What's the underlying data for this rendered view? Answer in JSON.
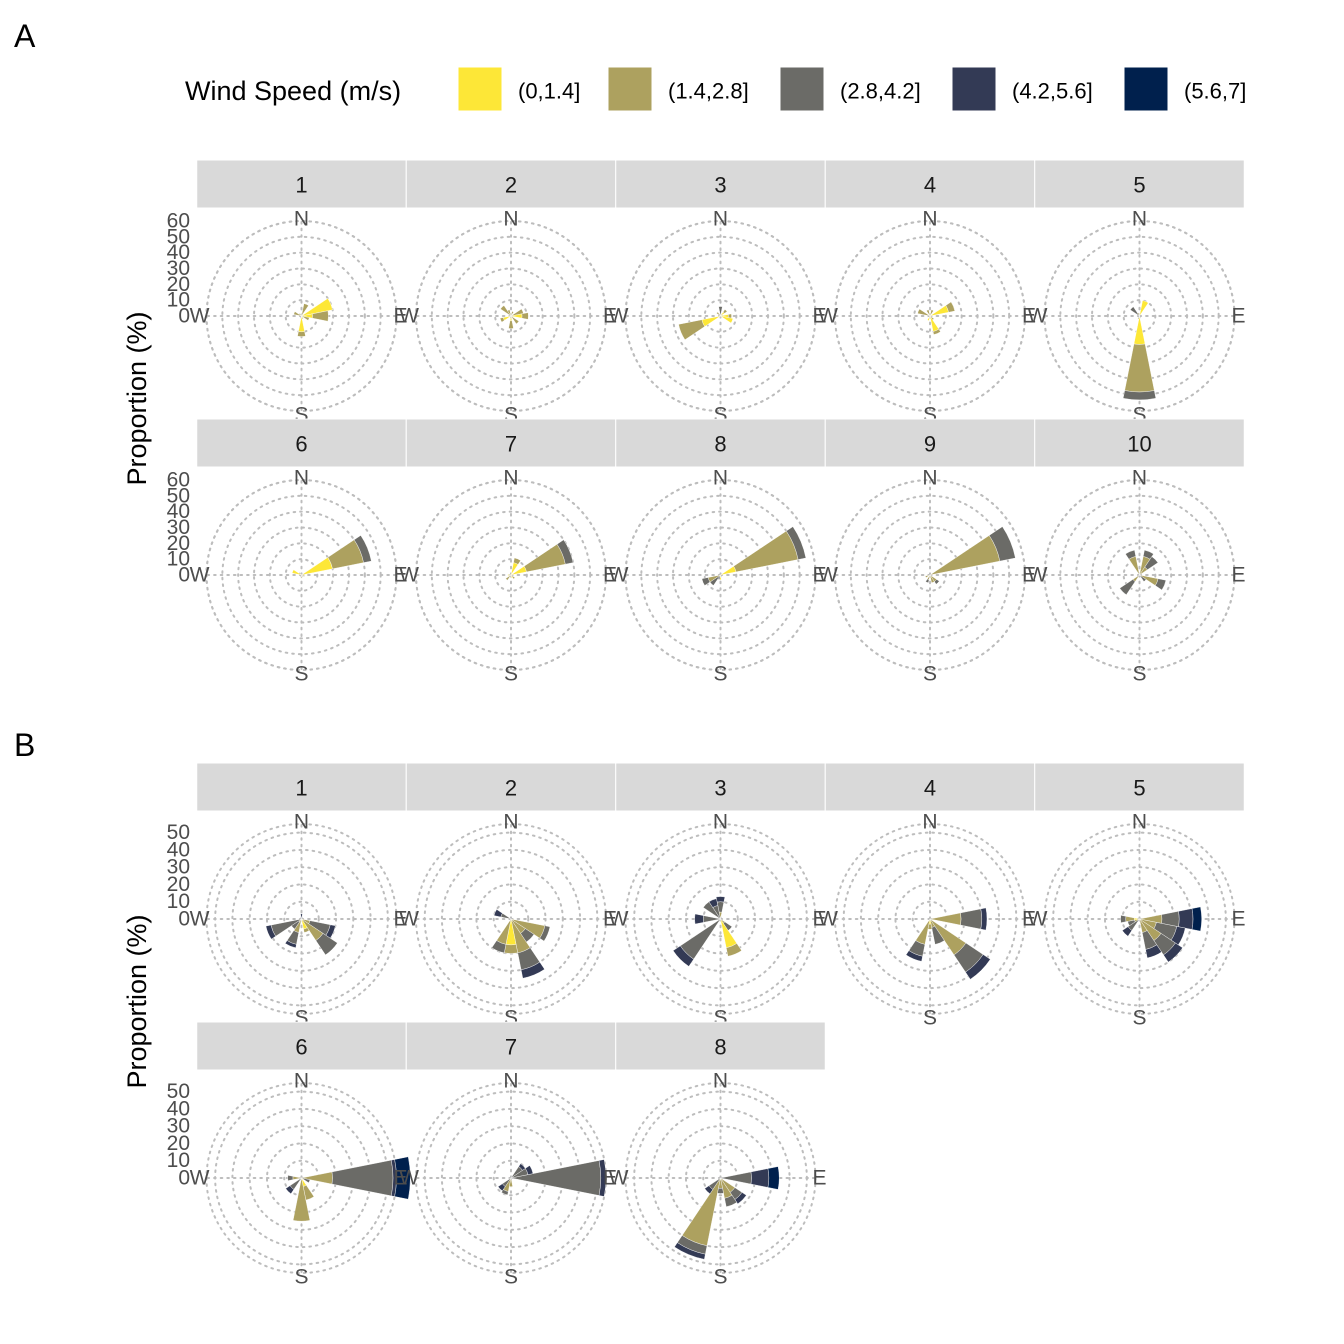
{
  "figure": {
    "panel_a_label": "A",
    "panel_b_label": "B",
    "y_axis_label": "Proportion (%)"
  },
  "legend": {
    "title": "Wind Speed (m/s)",
    "items": [
      {
        "label": "(0,1.4]",
        "color": "#FDE737"
      },
      {
        "label": "(1.4,2.8]",
        "color": "#ADA15F"
      },
      {
        "label": "(2.8,4.2]",
        "color": "#6B6B67"
      },
      {
        "label": "(4.2,5.6]",
        "color": "#333A55"
      },
      {
        "label": "(5.6,7]",
        "color": "#00204D"
      }
    ]
  },
  "compass": {
    "north": "N",
    "south": "S",
    "east": "E",
    "west": "W"
  },
  "chart_data": [
    {
      "panel": "A",
      "type": "wind_rose_facets",
      "ylabel": "Proportion (%)",
      "radial_ticks": [
        0,
        10,
        20,
        30,
        40,
        50,
        60
      ],
      "rmax": 60,
      "directions_deg": [
        0,
        22.5,
        45,
        67.5,
        90,
        112.5,
        135,
        157.5,
        180,
        202.5,
        225,
        247.5,
        270,
        292.5,
        315,
        337.5
      ],
      "facets": [
        {
          "label": "1",
          "bins": [
            {
              "dir": 22.5,
              "values": [
                0,
                8
              ]
            },
            {
              "dir": 67.5,
              "values": [
                20,
                0
              ]
            },
            {
              "dir": 90,
              "values": [
                7,
                10
              ]
            },
            {
              "dir": 112.5,
              "values": [
                0,
                5
              ]
            },
            {
              "dir": 157.5,
              "values": [
                0,
                2
              ]
            },
            {
              "dir": 180,
              "values": [
                10,
                3
              ]
            },
            {
              "dir": 292.5,
              "values": [
                0,
                5
              ]
            },
            {
              "dir": 315,
              "values": [
                0,
                2
              ]
            }
          ]
        },
        {
          "label": "2",
          "bins": [
            {
              "dir": 22.5,
              "values": [
                0,
                3
              ]
            },
            {
              "dir": 67.5,
              "values": [
                0,
                8
              ]
            },
            {
              "dir": 90,
              "values": [
                7,
                4
              ]
            },
            {
              "dir": 135,
              "values": [
                0,
                6
              ]
            },
            {
              "dir": 180,
              "values": [
                3,
                5
              ]
            },
            {
              "dir": 247.5,
              "values": [
                5,
                2
              ]
            },
            {
              "dir": 315,
              "values": [
                0,
                8
              ]
            },
            {
              "dir": 337.5,
              "values": [
                0,
                4
              ]
            }
          ]
        },
        {
          "label": "3",
          "bins": [
            {
              "dir": 0,
              "values": [
                0,
                0,
                6
              ]
            },
            {
              "dir": 45,
              "values": [
                3,
                2
              ]
            },
            {
              "dir": 90,
              "values": [
                5,
                2
              ]
            },
            {
              "dir": 112.5,
              "values": [
                8,
                0
              ]
            },
            {
              "dir": 247.5,
              "values": [
                12,
                15
              ]
            },
            {
              "dir": 315,
              "values": [
                0,
                3
              ]
            }
          ]
        },
        {
          "label": "4",
          "bins": [
            {
              "dir": 22.5,
              "values": [
                0,
                4
              ]
            },
            {
              "dir": 67.5,
              "values": [
                12,
                4
              ]
            },
            {
              "dir": 135,
              "values": [
                0,
                3
              ]
            },
            {
              "dir": 157.5,
              "values": [
                10,
                2
              ]
            },
            {
              "dir": 202.5,
              "values": [
                3,
                0
              ]
            },
            {
              "dir": 292.5,
              "values": [
                0,
                8
              ]
            },
            {
              "dir": 337.5,
              "values": [
                0,
                4
              ]
            }
          ]
        },
        {
          "label": "5",
          "bins": [
            {
              "dir": 22.5,
              "values": [
                10,
                0
              ]
            },
            {
              "dir": 180,
              "values": [
                18,
                30,
                5
              ]
            },
            {
              "dir": 202.5,
              "values": [
                0,
                2
              ]
            },
            {
              "dir": 315,
              "values": [
                0,
                0,
                7
              ]
            },
            {
              "dir": 337.5,
              "values": [
                0,
                2
              ]
            }
          ]
        },
        {
          "label": "6",
          "bins": [
            {
              "dir": 67.5,
              "values": [
                20,
                20,
                5
              ]
            },
            {
              "dir": 90,
              "values": [
                0,
                2
              ]
            },
            {
              "dir": 112.5,
              "values": [
                0,
                2
              ]
            },
            {
              "dir": 180,
              "values": [
                0,
                2
              ]
            },
            {
              "dir": 292.5,
              "values": [
                6,
                0
              ]
            },
            {
              "dir": 315,
              "values": [
                0,
                2
              ]
            }
          ]
        },
        {
          "label": "7",
          "bins": [
            {
              "dir": 22.5,
              "values": [
                8,
                3
              ]
            },
            {
              "dir": 67.5,
              "values": [
                10,
                25,
                5
              ]
            },
            {
              "dir": 135,
              "values": [
                0,
                3
              ]
            },
            {
              "dir": 157.5,
              "values": [
                2,
                0
              ]
            },
            {
              "dir": 225,
              "values": [
                0,
                4
              ]
            },
            {
              "dir": 270,
              "values": [
                2,
                0
              ]
            }
          ]
        },
        {
          "label": "8",
          "bins": [
            {
              "dir": 67.5,
              "values": [
                10,
                40,
                5
              ]
            },
            {
              "dir": 180,
              "values": [
                3,
                0
              ]
            },
            {
              "dir": 202.5,
              "values": [
                0,
                0,
                3
              ]
            },
            {
              "dir": 225,
              "values": [
                0,
                0,
                8
              ]
            },
            {
              "dir": 247.5,
              "values": [
                0,
                8,
                4
              ]
            }
          ]
        },
        {
          "label": "9",
          "bins": [
            {
              "dir": 67.5,
              "values": [
                0,
                45,
                10
              ]
            },
            {
              "dir": 135,
              "values": [
                0,
                5,
                2
              ]
            },
            {
              "dir": 157.5,
              "values": [
                0,
                5
              ]
            },
            {
              "dir": 202.5,
              "values": [
                0,
                3,
                2
              ]
            },
            {
              "dir": 247.5,
              "values": [
                0,
                3
              ]
            }
          ]
        },
        {
          "label": "10",
          "bins": [
            {
              "dir": 22.5,
              "values": [
                0,
                12,
                4
              ]
            },
            {
              "dir": 45,
              "values": [
                0,
                6,
                8
              ]
            },
            {
              "dir": 112.5,
              "values": [
                0,
                12,
                5
              ]
            },
            {
              "dir": 135,
              "values": [
                0,
                0,
                5
              ]
            },
            {
              "dir": 225,
              "values": [
                0,
                5,
                10
              ]
            },
            {
              "dir": 337.5,
              "values": [
                0,
                12,
                4
              ]
            }
          ]
        }
      ]
    },
    {
      "panel": "B",
      "type": "wind_rose_facets",
      "ylabel": "Proportion (%)",
      "radial_ticks": [
        0,
        10,
        20,
        30,
        40,
        50
      ],
      "rmax": 55,
      "directions_deg": [
        0,
        22.5,
        45,
        67.5,
        90,
        112.5,
        135,
        157.5,
        180,
        202.5,
        225,
        247.5,
        270,
        292.5,
        315,
        337.5
      ],
      "facets": [
        {
          "label": "1",
          "bins": [
            {
              "dir": 0,
              "values": [
                0,
                0,
                0,
                3
              ]
            },
            {
              "dir": 112.5,
              "values": [
                0,
                5,
                12,
                3
              ]
            },
            {
              "dir": 135,
              "values": [
                0,
                15,
                10
              ]
            },
            {
              "dir": 157.5,
              "values": [
                6,
                2
              ]
            },
            {
              "dir": 202.5,
              "values": [
                0,
                8,
                7,
                2
              ]
            },
            {
              "dir": 225,
              "values": [
                0,
                2,
                5
              ]
            },
            {
              "dir": 247.5,
              "values": [
                0,
                0,
                18,
                3
              ]
            }
          ]
        },
        {
          "label": "2",
          "bins": [
            {
              "dir": 112.5,
              "values": [
                0,
                20,
                3
              ]
            },
            {
              "dir": 157.5,
              "values": [
                0,
                20,
                10,
                5
              ]
            },
            {
              "dir": 180,
              "values": [
                15,
                5
              ]
            },
            {
              "dir": 202.5,
              "values": [
                0,
                15,
                5
              ]
            },
            {
              "dir": 135,
              "values": [
                0,
                10,
                6
              ]
            },
            {
              "dir": 292.5,
              "values": [
                0,
                0,
                6,
                4
              ]
            }
          ]
        },
        {
          "label": "3",
          "bins": [
            {
              "dir": 0,
              "values": [
                0,
                4,
                6,
                3
              ]
            },
            {
              "dir": 157.5,
              "values": [
                17,
                5
              ]
            },
            {
              "dir": 135,
              "values": [
                0,
                3,
                5
              ]
            },
            {
              "dir": 225,
              "values": [
                0,
                0,
                28,
                5
              ]
            },
            {
              "dir": 270,
              "values": [
                0,
                0,
                10,
                5
              ]
            },
            {
              "dir": 315,
              "values": [
                0,
                0,
                12
              ]
            },
            {
              "dir": 337.5,
              "values": [
                0,
                0,
                8,
                4
              ]
            }
          ]
        },
        {
          "label": "4",
          "bins": [
            {
              "dir": 90,
              "values": [
                0,
                18,
                12,
                3
              ]
            },
            {
              "dir": 135,
              "values": [
                0,
                25,
                12,
                5
              ]
            },
            {
              "dir": 157.5,
              "values": [
                0,
                5,
                10
              ]
            },
            {
              "dir": 202.5,
              "values": [
                0,
                15,
                7,
                3
              ]
            },
            {
              "dir": 180,
              "values": [
                3,
                3
              ]
            }
          ]
        },
        {
          "label": "5",
          "bins": [
            {
              "dir": 90,
              "values": [
                0,
                13,
                10,
                8,
                5
              ]
            },
            {
              "dir": 112.5,
              "values": [
                0,
                10,
                12,
                5
              ]
            },
            {
              "dir": 135,
              "values": [
                0,
                15,
                10,
                5
              ]
            },
            {
              "dir": 157.5,
              "values": [
                0,
                8,
                10,
                5
              ]
            },
            {
              "dir": 225,
              "values": [
                0,
                0,
                8,
                4
              ]
            },
            {
              "dir": 247.5,
              "values": [
                0,
                3,
                4
              ]
            },
            {
              "dir": 270,
              "values": [
                3,
                5,
                3
              ]
            }
          ]
        },
        {
          "label": "6",
          "bins": [
            {
              "dir": 90,
              "values": [
                0,
                18,
                35,
                10,
                3
              ]
            },
            {
              "dir": 112.5,
              "values": [
                0,
                0,
                5
              ]
            },
            {
              "dir": 157.5,
              "values": [
                5,
                8
              ]
            },
            {
              "dir": 180,
              "values": [
                0,
                25
              ]
            },
            {
              "dir": 225,
              "values": [
                0,
                0,
                8,
                3
              ]
            },
            {
              "dir": 270,
              "values": [
                0,
                5,
                3
              ]
            }
          ]
        },
        {
          "label": "7",
          "bins": [
            {
              "dir": 90,
              "values": [
                0,
                0,
                52,
                5
              ]
            },
            {
              "dir": 67.5,
              "values": [
                0,
                0,
                10,
                3
              ]
            },
            {
              "dir": 45,
              "values": [
                0,
                0,
                8,
                2
              ]
            },
            {
              "dir": 202.5,
              "values": [
                0,
                8,
                2
              ]
            },
            {
              "dir": 225,
              "values": [
                0,
                0,
                6,
                3
              ]
            },
            {
              "dir": 180,
              "values": [
                0,
                5
              ]
            }
          ]
        },
        {
          "label": "8",
          "bins": [
            {
              "dir": 90,
              "values": [
                0,
                0,
                18,
                10,
                6
              ]
            },
            {
              "dir": 135,
              "values": [
                0,
                10,
                5,
                3
              ]
            },
            {
              "dir": 157.5,
              "values": [
                0,
                12,
                5
              ]
            },
            {
              "dir": 202.5,
              "values": [
                0,
                40,
                5,
                3
              ]
            },
            {
              "dir": 225,
              "values": [
                0,
                0,
                8,
                3
              ]
            },
            {
              "dir": 180,
              "values": [
                0,
                6,
                3
              ]
            }
          ]
        }
      ]
    }
  ]
}
